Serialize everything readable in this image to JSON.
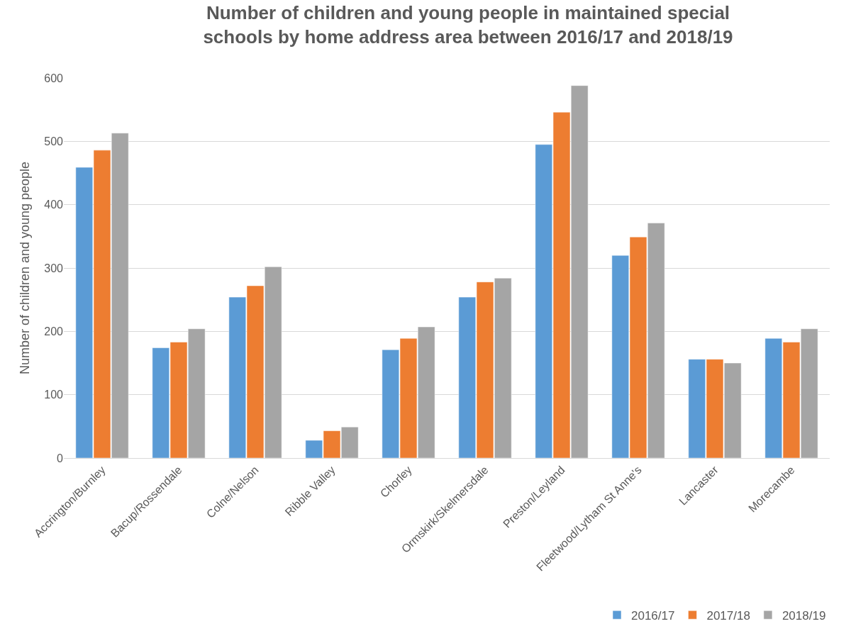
{
  "chart_data": {
    "type": "bar",
    "title": "Number of children and young people in maintained special schools by home address area between 2016/17 and 2018/19",
    "ylabel": "Number of children and young people",
    "categories": [
      "Accrington/Burnley",
      "Bacup/Rossendale",
      "Colne/Nelson",
      "Ribble Valley",
      "Chorley",
      "Ormskirk/Skelmersdale",
      "Preston/Leyland",
      "Fleetwood/Lytham St Anne's",
      "Lancaster",
      "Morecambe"
    ],
    "series": [
      {
        "name": "2016/17",
        "color": "#5b9bd5",
        "values": [
          459,
          174,
          254,
          28,
          171,
          254,
          495,
          320,
          156,
          189
        ]
      },
      {
        "name": "2017/18",
        "color": "#ed7d31",
        "values": [
          486,
          183,
          272,
          43,
          189,
          278,
          546,
          349,
          156,
          183
        ]
      },
      {
        "name": "2018/19",
        "color": "#a5a5a5",
        "values": [
          513,
          204,
          302,
          49,
          207,
          284,
          588,
          371,
          150,
          204
        ]
      }
    ],
    "ylim": [
      0,
      600
    ],
    "yticks": [
      0,
      100,
      200,
      300,
      400,
      500,
      600
    ],
    "grid": "y",
    "legend": "bottom right"
  }
}
